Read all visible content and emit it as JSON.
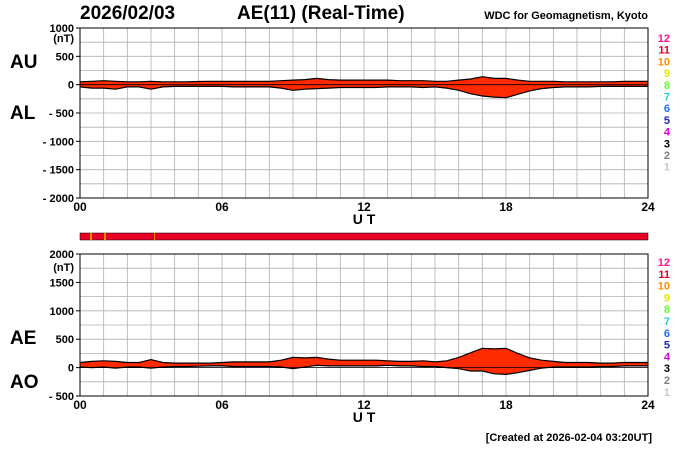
{
  "header": {
    "date": "2026/02/03",
    "title": "AE(11) (Real-Time)",
    "source": "WDC for Geomagnetism, Kyoto"
  },
  "footer": {
    "created": "[Created at 2026-02-04 03:20UT]"
  },
  "colors": {
    "fill": "#ff2a00",
    "line": "#000000",
    "grid": "#b0b0b0",
    "frame": "#000000"
  },
  "legend": {
    "stations": [
      {
        "label": "12",
        "color": "#ff1493"
      },
      {
        "label": "11",
        "color": "#e60026"
      },
      {
        "label": "10",
        "color": "#ff8c00"
      },
      {
        "label": "9",
        "color": "#e5e500"
      },
      {
        "label": "8",
        "color": "#66ff33"
      },
      {
        "label": "7",
        "color": "#22d3d3"
      },
      {
        "label": "6",
        "color": "#1e6cff"
      },
      {
        "label": "5",
        "color": "#2020c0"
      },
      {
        "label": "4",
        "color": "#e000e0"
      },
      {
        "label": "3",
        "color": "#000000"
      },
      {
        "label": "2",
        "color": "#808080"
      },
      {
        "label": "1",
        "color": "#c8c8c8"
      }
    ]
  },
  "chart_data": [
    {
      "type": "area",
      "series_labels": [
        "AU",
        "AL"
      ],
      "yunit": "(nT)",
      "xlabel": "U T",
      "xlim": [
        0,
        24
      ],
      "ylim": [
        -2000,
        1000
      ],
      "xticks": [
        {
          "v": 0,
          "label": "00"
        },
        {
          "v": 6,
          "label": "06"
        },
        {
          "v": 12,
          "label": "12"
        },
        {
          "v": 18,
          "label": "18"
        },
        {
          "v": 24,
          "label": "24"
        }
      ],
      "yticks": [
        {
          "v": 1000,
          "label": "1000"
        },
        {
          "v": 500,
          "label": "500"
        },
        {
          "v": 0,
          "label": "0"
        },
        {
          "v": -500,
          "label": "- 500"
        },
        {
          "v": -1000,
          "label": "- 1000"
        },
        {
          "v": -1500,
          "label": "- 1500"
        },
        {
          "v": -2000,
          "label": "- 2000"
        }
      ],
      "grid_x_step": 1,
      "grid_y_step": 250,
      "x": [
        0,
        0.5,
        1,
        1.5,
        2,
        2.5,
        3,
        3.5,
        4,
        4.5,
        5,
        5.5,
        6,
        6.5,
        7,
        7.5,
        8,
        8.5,
        9,
        9.5,
        10,
        10.5,
        11,
        11.5,
        12,
        12.5,
        13,
        13.5,
        14,
        14.5,
        15,
        15.5,
        16,
        16.5,
        17,
        17.5,
        18,
        18.5,
        19,
        19.5,
        20,
        20.5,
        21,
        21.5,
        22,
        22.5,
        23,
        23.5,
        24
      ],
      "upper": [
        50,
        60,
        70,
        60,
        50,
        50,
        60,
        50,
        50,
        50,
        55,
        60,
        60,
        60,
        60,
        60,
        60,
        70,
        80,
        90,
        110,
        90,
        80,
        80,
        80,
        80,
        80,
        70,
        70,
        70,
        60,
        60,
        80,
        100,
        140,
        110,
        110,
        80,
        60,
        60,
        60,
        50,
        50,
        50,
        50,
        50,
        60,
        60,
        60
      ],
      "lower": [
        -40,
        -60,
        -60,
        -80,
        -40,
        -40,
        -80,
        -40,
        -30,
        -30,
        -30,
        -30,
        -30,
        -40,
        -40,
        -40,
        -40,
        -60,
        -100,
        -80,
        -70,
        -60,
        -50,
        -50,
        -50,
        -50,
        -40,
        -40,
        -40,
        -50,
        -40,
        -60,
        -100,
        -160,
        -200,
        -220,
        -230,
        -170,
        -110,
        -70,
        -50,
        -40,
        -40,
        -40,
        -30,
        -30,
        -30,
        -30,
        -30
      ]
    },
    {
      "type": "area",
      "series_labels": [
        "AE",
        "AO"
      ],
      "yunit": "(nT)",
      "xlabel": "U T",
      "xlim": [
        0,
        24
      ],
      "ylim": [
        -500,
        2000
      ],
      "xticks": [
        {
          "v": 0,
          "label": "00"
        },
        {
          "v": 6,
          "label": "06"
        },
        {
          "v": 12,
          "label": "12"
        },
        {
          "v": 18,
          "label": "18"
        },
        {
          "v": 24,
          "label": "24"
        }
      ],
      "yticks": [
        {
          "v": 2000,
          "label": "2000"
        },
        {
          "v": 1500,
          "label": "1500"
        },
        {
          "v": 1000,
          "label": "1000"
        },
        {
          "v": 500,
          "label": "500"
        },
        {
          "v": 0,
          "label": "0"
        },
        {
          "v": -500,
          "label": "- 500"
        }
      ],
      "grid_x_step": 1,
      "grid_y_step": 250,
      "x": [
        0,
        0.5,
        1,
        1.5,
        2,
        2.5,
        3,
        3.5,
        4,
        4.5,
        5,
        5.5,
        6,
        6.5,
        7,
        7.5,
        8,
        8.5,
        9,
        9.5,
        10,
        10.5,
        11,
        11.5,
        12,
        12.5,
        13,
        13.5,
        14,
        14.5,
        15,
        15.5,
        16,
        16.5,
        17,
        17.5,
        18,
        18.5,
        19,
        19.5,
        20,
        20.5,
        21,
        21.5,
        22,
        22.5,
        23,
        23.5,
        24
      ],
      "upper": [
        90,
        110,
        120,
        110,
        90,
        90,
        140,
        90,
        80,
        80,
        80,
        80,
        90,
        100,
        100,
        100,
        100,
        130,
        180,
        170,
        180,
        150,
        130,
        130,
        130,
        130,
        120,
        110,
        110,
        120,
        100,
        120,
        180,
        260,
        340,
        330,
        340,
        250,
        170,
        130,
        110,
        90,
        90,
        90,
        80,
        80,
        90,
        90,
        90
      ],
      "lower": [
        10,
        0,
        10,
        -10,
        10,
        10,
        -10,
        10,
        20,
        20,
        25,
        30,
        30,
        20,
        20,
        20,
        20,
        10,
        -20,
        10,
        40,
        30,
        30,
        30,
        30,
        30,
        40,
        30,
        30,
        20,
        20,
        0,
        -20,
        -60,
        -60,
        -110,
        -120,
        -90,
        -50,
        -10,
        10,
        10,
        10,
        10,
        20,
        20,
        30,
        30,
        30
      ]
    }
  ]
}
